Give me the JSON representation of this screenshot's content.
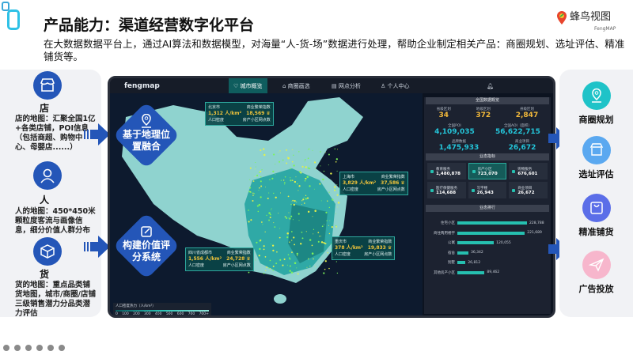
{
  "slide": {
    "title": "产品能力：渠道经营数字化平台",
    "subtitle": "在大数据数据平台上，通过AI算法和数据模型，对海量“人-货-场”数据进行处理，帮助企业制定相关产品：商圈规划、选址评估、精准铺货等。"
  },
  "logo": {
    "name": "蜂鸟视图",
    "en": "FengMAP"
  },
  "left": [
    {
      "icon": "store-icon",
      "label": "店",
      "desc": "店的地图：汇聚全国1亿+各类店铺，POI信息（包括商超、购物中心、母婴店......）"
    },
    {
      "icon": "person-icon",
      "label": "人",
      "desc": "人的地图：450*450米颗粒度客流与画像信息，细分价值人群分布"
    },
    {
      "icon": "box-icon",
      "label": "货",
      "desc": "货的地图：重点品类铺货地图，城市/商圈/店铺三级销售潜力分品类潜力评估"
    }
  ],
  "diamonds": [
    {
      "icon": "location-pin-icon",
      "label": "基于地理位置融合"
    },
    {
      "icon": "edit-icon",
      "label": "构建价值评分系统"
    }
  ],
  "right": [
    {
      "icon": "location-pin-icon",
      "label": "商圈规划",
      "color": "#1fc3c8"
    },
    {
      "icon": "storefront-icon",
      "label": "选址评估",
      "color": "#5aa8f0"
    },
    {
      "icon": "shopping-bag-icon",
      "label": "精准铺货",
      "color": "#5b6ee8"
    },
    {
      "icon": "paper-plane-icon",
      "label": "广告投放",
      "color": "#f7b6cc"
    }
  ],
  "dashboard": {
    "brand": "fengmap",
    "nav": [
      "城市概览",
      "商圈画选",
      "网点分析",
      "个人中心"
    ],
    "callouts": [
      {
        "city": "北京市",
        "index_label": "商业繁荣指数",
        "density": "1,312",
        "unit": "人/km²",
        "count": "18,569",
        "density_label": "人口密度",
        "count_label": "房产小区网点数"
      },
      {
        "city": "上海市",
        "index_label": "商业繁荣指数",
        "density": "3,829",
        "unit": "人/km²",
        "count": "37,586",
        "density_label": "人口密度",
        "count_label": "房产小区网点数"
      },
      {
        "city": "重庆市",
        "index_label": "商业繁荣指数",
        "density": "378",
        "unit": "人/km²",
        "count": "19,833",
        "density_label": "人口密度",
        "count_label": "房产小区网点数"
      },
      {
        "city": "四川省成都市",
        "index_label": "商业繁荣指数",
        "density": "1,556",
        "unit": "人/km²",
        "count": "24,728",
        "density_label": "人口密度",
        "count_label": "房产小区网点数"
      }
    ],
    "legend": {
      "title": "人口密度热力（人/km²）",
      "ticks": [
        "0",
        "100",
        "200",
        "300",
        "400",
        "500",
        "600",
        "700",
        "700+"
      ]
    },
    "overview": {
      "title": "全国数据概览",
      "top": [
        {
          "k": "省级区划",
          "v": "34"
        },
        {
          "k": "地级区划",
          "v": "372"
        },
        {
          "k": "县级区划",
          "v": "2,847"
        }
      ],
      "mid": [
        {
          "k": "全国POI",
          "v": "4,109,035"
        },
        {
          "k": "全国AOI（面积）",
          "v": "56,622,715"
        },
        {
          "k": "品牌数据",
          "v": "1,475,933"
        },
        {
          "k": "商业项目",
          "v": "26,672"
        }
      ]
    },
    "tiles_title": "业态指标",
    "tiles": [
      {
        "k": "教育服务",
        "v": "1,480,878"
      },
      {
        "k": "房产小区",
        "v": "723,070"
      },
      {
        "k": "购物服务",
        "v": "676,601"
      },
      {
        "k": "医疗保健服务",
        "v": "114,688"
      },
      {
        "k": "写字楼",
        "v": "26,943"
      },
      {
        "k": "商业项目",
        "v": "26,672"
      }
    ],
    "rank_title": "业态排行",
    "ranks": [
      {
        "k": "住宅小区",
        "v": "228,788",
        "n": 228788
      },
      {
        "k": "商住两用楼宇",
        "v": "221,689",
        "n": 221689
      },
      {
        "k": "公寓",
        "v": "120,055",
        "n": 120055
      },
      {
        "k": "宿舍",
        "v": "36,342",
        "n": 36342
      },
      {
        "k": "别墅",
        "v": "26,812",
        "n": 26812
      },
      {
        "k": "其他房产小区",
        "v": "89,462",
        "n": 89462
      }
    ]
  },
  "colors": {
    "accent": "#2456b8",
    "teal": "#26c0b0",
    "gold": "#f2b93b"
  }
}
